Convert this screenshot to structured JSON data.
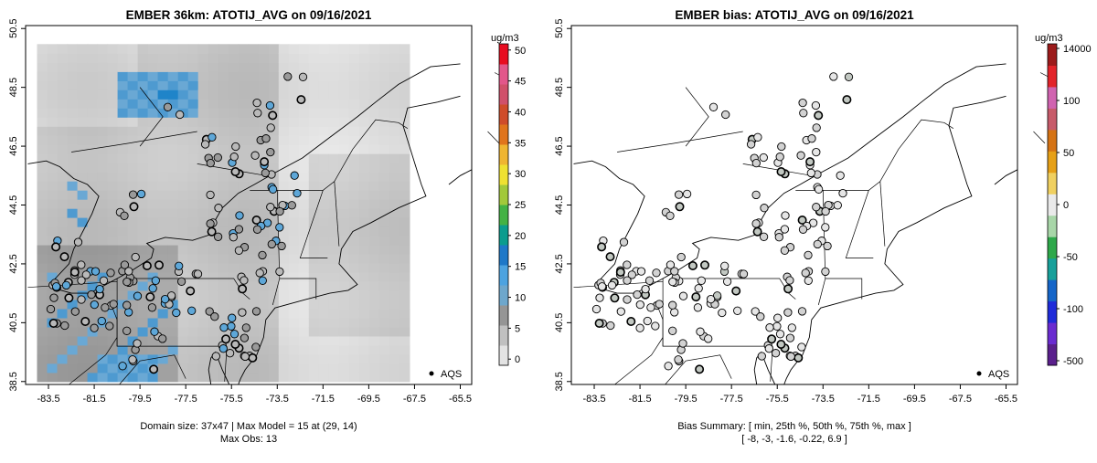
{
  "chart_data": [
    {
      "type": "heatmap",
      "title": "EMBER 36km: ATOTIJ_AVG on 09/16/2021",
      "x_ticks": [
        "-83.5",
        "-81.5",
        "-79.5",
        "-77.5",
        "-75.5",
        "-73.5",
        "-71.5",
        "-69.5",
        "-67.5",
        "-65.5"
      ],
      "y_ticks": [
        "38.5",
        "40.5",
        "42.5",
        "44.5",
        "46.5",
        "48.5",
        "50.5"
      ],
      "x_range": [
        -84.5,
        -65.0
      ],
      "y_range": [
        38.4,
        50.6
      ],
      "colorbar": {
        "unit": "ug/m3",
        "ticks": [
          "0",
          "5",
          "10",
          "15",
          "20",
          "25",
          "30",
          "35",
          "40",
          "45",
          "50"
        ],
        "range": [
          -1,
          51
        ],
        "colors": [
          "#e3e3e3",
          "#c0c0c0",
          "#959595",
          "#6ea7cc",
          "#4da3e0",
          "#1e78c8",
          "#0b9c8e",
          "#43b244",
          "#a2c93a",
          "#efe131",
          "#efb531",
          "#e0741c",
          "#cf4c2a",
          "#d0506a",
          "#e2568a",
          "#e80c20"
        ]
      },
      "legend": "AQS",
      "footer_lines": [
        "Domain size: 37x47 | Max Model = 15 at (29, 14)",
        "Max Obs: 13"
      ]
    },
    {
      "type": "scatter",
      "title": "EMBER bias: ATOTIJ_AVG on 09/16/2021",
      "x_ticks": [
        "-83.5",
        "-81.5",
        "-79.5",
        "-77.5",
        "-75.5",
        "-73.5",
        "-71.5",
        "-69.5",
        "-67.5",
        "-65.5"
      ],
      "y_ticks": [
        "38.5",
        "40.5",
        "42.5",
        "44.5",
        "46.5",
        "48.5",
        "50.5"
      ],
      "x_range": [
        -84.5,
        -65.0
      ],
      "y_range": [
        38.4,
        50.6
      ],
      "colorbar": {
        "unit": "ug/m3",
        "ticks": [
          "14000",
          "100",
          "50",
          "0",
          "-50",
          "-100",
          "-500"
        ],
        "range": [
          -500,
          14000
        ],
        "colors": [
          "#5a1f8c",
          "#6a2bd0",
          "#1f2bd9",
          "#1565c8",
          "#17a09a",
          "#2ea84a",
          "#a8d6a8",
          "#eaeaea",
          "#f0d060",
          "#e6a017",
          "#d57314",
          "#c75b6a",
          "#d063b0",
          "#e2242a",
          "#9c1b1b"
        ]
      },
      "legend": "AQS",
      "footer_lines": [
        "Bias Summary: [ min, 25th %, 50th %, 75th %, max ]",
        "[ -8,   -3,   -1.6,   -0.22,   6.9 ]"
      ],
      "bias_summary": {
        "min": -8,
        "p25": -3,
        "p50": -1.6,
        "p75": -0.22,
        "max": 6.9
      }
    }
  ]
}
